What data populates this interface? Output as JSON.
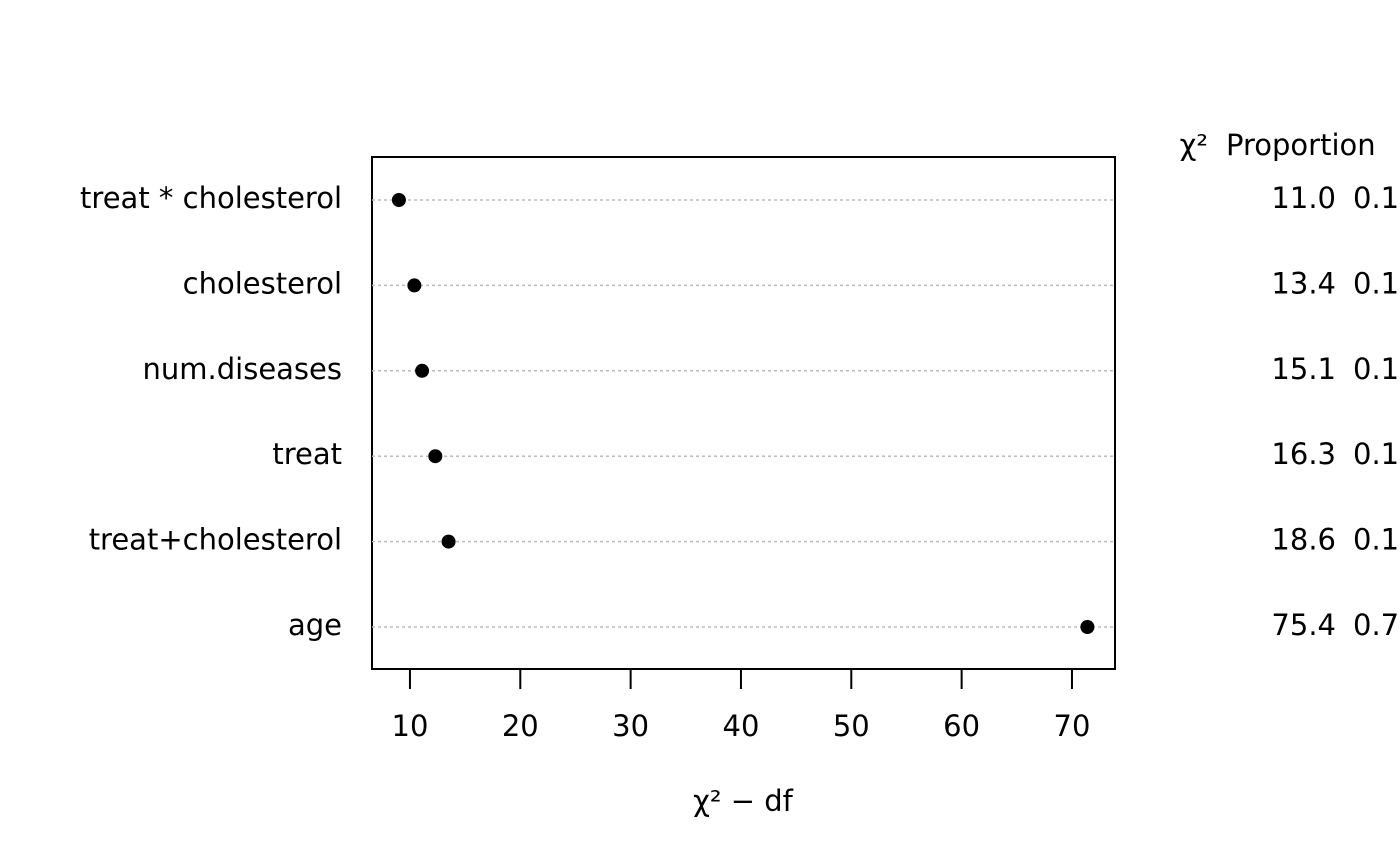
{
  "chart_data": {
    "type": "dot",
    "categories": [
      "treat * cholesterol",
      "cholesterol",
      "num.diseases",
      "treat",
      "treat+cholesterol",
      "age"
    ],
    "values": [
      9.0,
      10.4,
      11.1,
      12.3,
      13.5,
      71.4
    ],
    "color": "#000000",
    "xlabel": "χ² − df",
    "xlim": [
      6.56,
      73.9
    ],
    "xticks": [
      10,
      20,
      30,
      40,
      50,
      60,
      70
    ],
    "grid": true,
    "table": {
      "headers": [
        "χ²",
        "Proportion"
      ],
      "chi2": [
        "11.0",
        "13.4",
        "15.1",
        "16.3",
        "18.6",
        "75.4"
      ],
      "proportion": [
        "0.1",
        "0.1",
        "0.1",
        "0.1",
        "0.1",
        "0.7"
      ]
    }
  }
}
